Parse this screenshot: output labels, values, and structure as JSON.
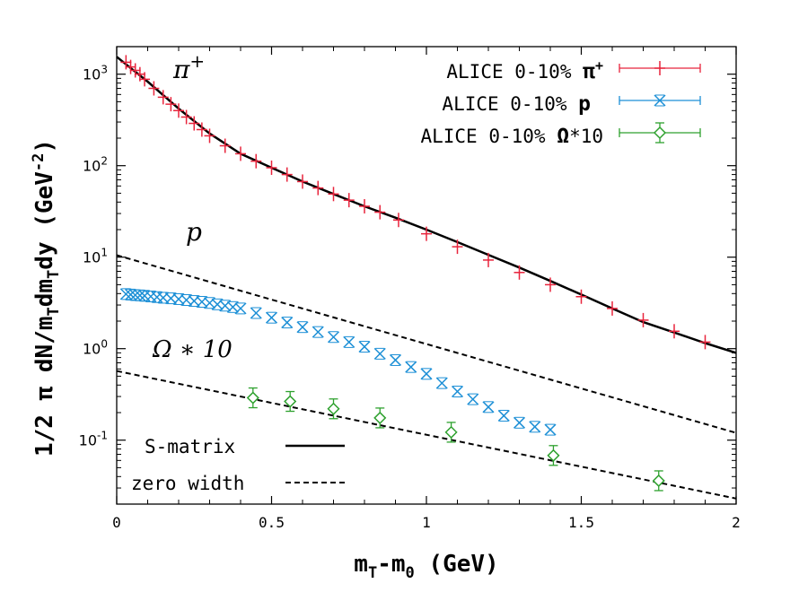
{
  "chart_data": {
    "type": "scatter",
    "xlabel_main": "m",
    "xlabel_sub1": "T",
    "xlabel_mid": "-m",
    "xlabel_sub2": "0",
    "xlabel_unit": " (GeV)",
    "ylabel_lead": "1/2 π dN/m",
    "ylabel_sub1": "T",
    "ylabel_mid": "dm",
    "ylabel_sub2": "T",
    "ylabel_tail": "dy  (GeV",
    "ylabel_sup": "-2",
    "ylabel_close": ")",
    "xlim": [
      0,
      2
    ],
    "ylim": [
      0.02,
      2000
    ],
    "yscale": "log",
    "x_ticks": [
      {
        "value": 0,
        "label": "0"
      },
      {
        "value": 0.5,
        "label": "0.5"
      },
      {
        "value": 1,
        "label": "1"
      },
      {
        "value": 1.5,
        "label": "1.5"
      },
      {
        "value": 2,
        "label": "2"
      }
    ],
    "y_ticks": [
      {
        "value": 0.1,
        "base": "10",
        "exp": "-1"
      },
      {
        "value": 1,
        "base": "10",
        "exp": "0"
      },
      {
        "value": 10,
        "base": "10",
        "exp": "1"
      },
      {
        "value": 100,
        "base": "10",
        "exp": "2"
      },
      {
        "value": 1000,
        "base": "10",
        "exp": "3"
      }
    ],
    "series": [
      {
        "name": "ALICE 0-10% π+",
        "legend_text": "ALICE 0-10% ",
        "legend_symbol": "π",
        "legend_sup": "+",
        "marker": "plus",
        "color": "#e8243c",
        "x": [
          0.03,
          0.045,
          0.06,
          0.075,
          0.09,
          0.12,
          0.15,
          0.175,
          0.2,
          0.225,
          0.25,
          0.275,
          0.3,
          0.35,
          0.4,
          0.45,
          0.5,
          0.55,
          0.6,
          0.65,
          0.7,
          0.75,
          0.8,
          0.85,
          0.91,
          1.0,
          1.1,
          1.2,
          1.3,
          1.4,
          1.5,
          1.6,
          1.7,
          1.8,
          1.9
        ],
        "y": [
          1350,
          1200,
          1100,
          1000,
          880,
          700,
          560,
          470,
          400,
          340,
          290,
          248,
          212,
          165,
          135,
          112,
          95,
          80,
          67,
          57,
          49,
          42,
          36,
          31,
          25.5,
          18,
          13,
          9.3,
          6.8,
          5.0,
          3.7,
          2.75,
          2.05,
          1.55,
          1.18
        ]
      },
      {
        "name": "ALICE 0-10% p",
        "legend_text": "ALICE 0-10% ",
        "legend_symbol": "p",
        "legend_sup": "",
        "marker": "cross",
        "color": "#1c8fd6",
        "x": [
          0.03,
          0.045,
          0.06,
          0.075,
          0.09,
          0.11,
          0.13,
          0.15,
          0.175,
          0.2,
          0.225,
          0.25,
          0.275,
          0.3,
          0.325,
          0.35,
          0.375,
          0.4,
          0.45,
          0.5,
          0.55,
          0.6,
          0.65,
          0.7,
          0.75,
          0.8,
          0.85,
          0.9,
          0.95,
          1.0,
          1.05,
          1.1,
          1.15,
          1.2,
          1.25,
          1.3,
          1.35,
          1.4
        ],
        "y": [
          3.95,
          3.9,
          3.85,
          3.82,
          3.78,
          3.72,
          3.66,
          3.6,
          3.55,
          3.48,
          3.4,
          3.32,
          3.25,
          3.16,
          3.05,
          2.95,
          2.85,
          2.75,
          2.45,
          2.18,
          1.93,
          1.72,
          1.52,
          1.34,
          1.18,
          1.05,
          0.88,
          0.75,
          0.63,
          0.53,
          0.42,
          0.34,
          0.28,
          0.23,
          0.185,
          0.155,
          0.14,
          0.13
        ]
      },
      {
        "name": "ALICE 0-10% Ω*10",
        "legend_text": "ALICE 0-10% ",
        "legend_symbol": "Ω",
        "legend_sup": "*10",
        "marker": "diamond",
        "color": "#2ea12e",
        "x": [
          0.44,
          0.56,
          0.7,
          0.85,
          1.08,
          1.41,
          1.75
        ],
        "y": [
          0.29,
          0.265,
          0.22,
          0.175,
          0.122,
          0.068,
          0.036
        ]
      }
    ],
    "curves": [
      {
        "name": "S-matrix",
        "style": "solid",
        "color": "#000000",
        "x": [
          0,
          0.05,
          0.1,
          0.2,
          0.3,
          0.4,
          0.5,
          0.6,
          0.7,
          0.8,
          0.9,
          1.0,
          1.1,
          1.2,
          1.3,
          1.4,
          1.5,
          1.6,
          1.7,
          1.8,
          1.9,
          2.0
        ],
        "y": [
          1550,
          1130,
          830,
          420,
          225,
          135,
          95,
          67,
          49,
          36,
          27,
          20,
          14.6,
          10.6,
          7.7,
          5.5,
          3.9,
          2.75,
          1.95,
          1.5,
          1.15,
          0.9
        ]
      },
      {
        "name": "zero width (p)",
        "style": "dashed",
        "color": "#000000",
        "x": [
          0,
          2.0
        ],
        "y": [
          10.5,
          0.12
        ]
      },
      {
        "name": "zero width (Ω*10)",
        "style": "dashed",
        "color": "#000000",
        "x": [
          0,
          2.0
        ],
        "y": [
          0.57,
          0.023
        ]
      }
    ],
    "annotations": [
      {
        "name": "pi-plus",
        "text": "π",
        "sup": "+"
      },
      {
        "name": "proton",
        "text": "p",
        "sup": ""
      },
      {
        "name": "omega",
        "text": "Ω ∗ 10",
        "sup": ""
      }
    ],
    "legend_lines": [
      {
        "label": "S-matrix",
        "style": "solid"
      },
      {
        "label": "zero width",
        "style": "dashed"
      }
    ]
  }
}
